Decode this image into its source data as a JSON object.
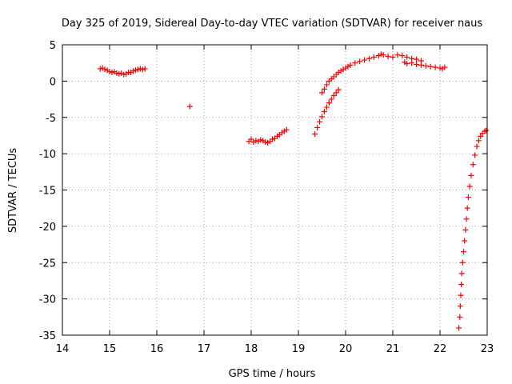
{
  "chart_data": {
    "type": "scatter",
    "title": "Day 325 of 2019, Sidereal Day-to-day VTEC variation (SDTVAR) for receiver naus",
    "xlabel": "GPS time / hours",
    "ylabel": "SDTVAR / TECUs",
    "xlim": [
      14,
      23
    ],
    "ylim": [
      -35,
      5
    ],
    "x_ticks": [
      "14",
      "15",
      "16",
      "17",
      "18",
      "19",
      "20",
      "21",
      "22",
      "23"
    ],
    "y_ticks": [
      "5",
      "0",
      "-5",
      "-10",
      "-15",
      "-20",
      "-25",
      "-30",
      "-35"
    ],
    "grid": true,
    "marker": "+",
    "color": "#ff0000",
    "series": [
      {
        "name": "SDTVAR",
        "points": [
          [
            14.8,
            1.7
          ],
          [
            14.85,
            1.8
          ],
          [
            14.9,
            1.6
          ],
          [
            14.95,
            1.5
          ],
          [
            15.0,
            1.3
          ],
          [
            15.05,
            1.2
          ],
          [
            15.1,
            1.3
          ],
          [
            15.15,
            1.1
          ],
          [
            15.2,
            1.0
          ],
          [
            15.25,
            1.1
          ],
          [
            15.3,
            0.9
          ],
          [
            15.35,
            1.0
          ],
          [
            15.4,
            1.2
          ],
          [
            15.45,
            1.2
          ],
          [
            15.5,
            1.4
          ],
          [
            15.55,
            1.5
          ],
          [
            15.6,
            1.6
          ],
          [
            15.65,
            1.7
          ],
          [
            15.7,
            1.6
          ],
          [
            15.75,
            1.7
          ],
          [
            16.7,
            -3.5
          ],
          [
            17.95,
            -8.3
          ],
          [
            18.0,
            -8.0
          ],
          [
            18.05,
            -8.4
          ],
          [
            18.1,
            -8.2
          ],
          [
            18.15,
            -8.3
          ],
          [
            18.2,
            -8.1
          ],
          [
            18.25,
            -8.2
          ],
          [
            18.3,
            -8.4
          ],
          [
            18.35,
            -8.5
          ],
          [
            18.4,
            -8.3
          ],
          [
            18.45,
            -8.0
          ],
          [
            18.5,
            -7.9
          ],
          [
            18.55,
            -7.6
          ],
          [
            18.6,
            -7.4
          ],
          [
            18.65,
            -7.1
          ],
          [
            18.7,
            -6.9
          ],
          [
            18.75,
            -6.7
          ],
          [
            19.35,
            -7.3
          ],
          [
            19.4,
            -6.4
          ],
          [
            19.45,
            -5.6
          ],
          [
            19.5,
            -4.9
          ],
          [
            19.55,
            -4.2
          ],
          [
            19.6,
            -3.6
          ],
          [
            19.65,
            -3.0
          ],
          [
            19.7,
            -2.5
          ],
          [
            19.75,
            -2.0
          ],
          [
            19.8,
            -1.6
          ],
          [
            19.85,
            -1.2
          ],
          [
            19.5,
            -1.6
          ],
          [
            19.55,
            -1.1
          ],
          [
            19.6,
            -0.5
          ],
          [
            19.65,
            0.0
          ],
          [
            19.7,
            0.3
          ],
          [
            19.75,
            0.6
          ],
          [
            19.8,
            0.9
          ],
          [
            19.85,
            1.2
          ],
          [
            19.9,
            1.4
          ],
          [
            19.95,
            1.6
          ],
          [
            20.0,
            1.8
          ],
          [
            20.05,
            2.0
          ],
          [
            20.1,
            2.2
          ],
          [
            20.2,
            2.5
          ],
          [
            20.3,
            2.7
          ],
          [
            20.4,
            2.9
          ],
          [
            20.5,
            3.1
          ],
          [
            20.6,
            3.3
          ],
          [
            20.7,
            3.5
          ],
          [
            20.75,
            3.7
          ],
          [
            20.8,
            3.6
          ],
          [
            20.9,
            3.4
          ],
          [
            21.0,
            3.3
          ],
          [
            21.1,
            3.6
          ],
          [
            21.2,
            3.5
          ],
          [
            21.3,
            3.3
          ],
          [
            21.4,
            3.1
          ],
          [
            21.5,
            3.0
          ],
          [
            21.6,
            2.8
          ],
          [
            21.25,
            2.6
          ],
          [
            21.3,
            2.4
          ],
          [
            21.4,
            2.5
          ],
          [
            21.5,
            2.3
          ],
          [
            21.6,
            2.2
          ],
          [
            21.7,
            2.1
          ],
          [
            21.8,
            2.0
          ],
          [
            21.9,
            1.9
          ],
          [
            22.0,
            1.8
          ],
          [
            22.05,
            1.7
          ],
          [
            22.1,
            1.9
          ],
          [
            22.4,
            -34.0
          ],
          [
            22.42,
            -32.5
          ],
          [
            22.43,
            -31.0
          ],
          [
            22.44,
            -29.5
          ],
          [
            22.45,
            -28.0
          ],
          [
            22.46,
            -26.5
          ],
          [
            22.48,
            -25.0
          ],
          [
            22.5,
            -23.5
          ],
          [
            22.52,
            -22.0
          ],
          [
            22.54,
            -20.5
          ],
          [
            22.56,
            -19.0
          ],
          [
            22.58,
            -17.5
          ],
          [
            22.6,
            -16.0
          ],
          [
            22.63,
            -14.5
          ],
          [
            22.66,
            -13.0
          ],
          [
            22.7,
            -11.5
          ],
          [
            22.74,
            -10.2
          ],
          [
            22.78,
            -9.0
          ],
          [
            22.82,
            -8.2
          ],
          [
            22.86,
            -7.6
          ],
          [
            22.9,
            -7.2
          ],
          [
            22.95,
            -6.9
          ],
          [
            22.98,
            -6.8
          ]
        ]
      }
    ]
  }
}
